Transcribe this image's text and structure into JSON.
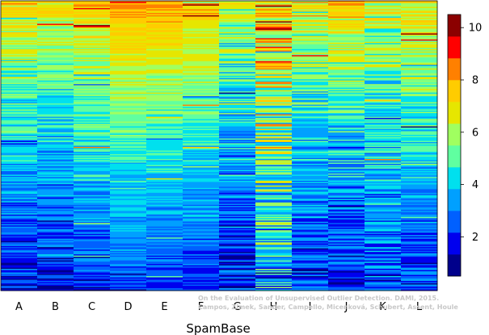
{
  "chart_data": {
    "type": "heatmap",
    "title": "",
    "xlabel": "SpamBase",
    "ylabel": "",
    "columns": [
      "A",
      "B",
      "C",
      "D",
      "E",
      "F",
      "G",
      "H",
      "I",
      "J",
      "K",
      "L"
    ],
    "column_mean_top": [
      7.4,
      7.2,
      7.8,
      8.5,
      8.3,
      8.0,
      6.3,
      8.4,
      7.0,
      7.6,
      6.5,
      7.4
    ],
    "column_mean_bottom": [
      1.7,
      1.6,
      2.0,
      2.3,
      2.1,
      2.0,
      1.8,
      3.6,
      1.8,
      1.6,
      2.4,
      2.1
    ],
    "column_noise": [
      1.2,
      1.1,
      1.0,
      0.7,
      0.7,
      0.8,
      1.5,
      2.6,
      1.3,
      1.4,
      1.5,
      1.2
    ],
    "value_range": [
      0.5,
      10.5
    ],
    "colorbar": {
      "ticks": [
        2,
        4,
        6,
        8,
        10
      ],
      "colors": [
        "#00008b",
        "#0000ee",
        "#0060ff",
        "#00a0ff",
        "#00e0ee",
        "#60ffa0",
        "#a0ff60",
        "#e6e600",
        "#ffcc00",
        "#ff8000",
        "#ff0000",
        "#8b0000"
      ]
    },
    "watermark": [
      "On the Evaluation of Unsupervised Outlier Detection. DAMI, 2015.",
      "Campos, Zimek, Sander, Campello, Micenková, Schubert, Assent, Houle"
    ]
  }
}
